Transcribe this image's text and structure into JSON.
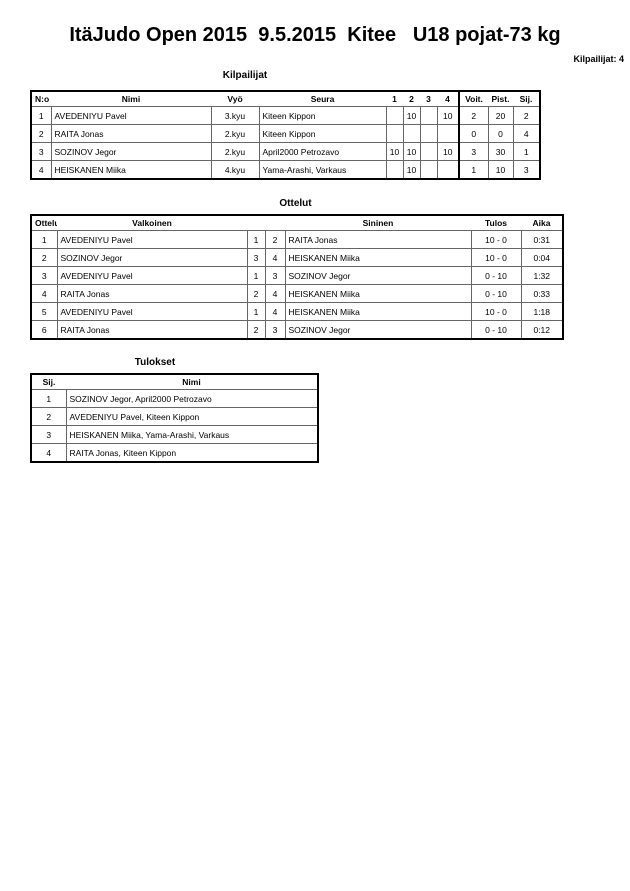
{
  "header": {
    "title": "ItäJudo Open 2015  9.5.2015  Kitee   U18 pojat-73 kg",
    "count": "Kilpailijat: 4"
  },
  "competitors": {
    "heading": "Kilpailijat",
    "columns": [
      "N:o",
      "Nimi",
      "Vyö",
      "Seura",
      "1",
      "2",
      "3",
      "4",
      "Voit.",
      "Pist.",
      "Sij."
    ],
    "rows": [
      [
        "1",
        "AVEDENIYU Pavel",
        "3.kyu",
        "Kiteen Kippon",
        "",
        "10",
        "",
        "10",
        "2",
        "20",
        "2"
      ],
      [
        "2",
        "RAITA Jonas",
        "2.kyu",
        "Kiteen Kippon",
        "",
        "",
        "",
        "",
        "0",
        "0",
        "4"
      ],
      [
        "3",
        "SOZINOV Jegor",
        "2.kyu",
        "April2000 Petrozavo",
        "10",
        "10",
        "",
        "10",
        "3",
        "30",
        "1"
      ],
      [
        "4",
        "HEISKANEN Miika",
        "4.kyu",
        "Yama-Arashi, Varkaus",
        "",
        "10",
        "",
        "",
        "1",
        "10",
        "3"
      ]
    ]
  },
  "matches": {
    "heading": "Ottelut",
    "columns": [
      "Ottelu",
      "Valkoinen",
      "",
      "",
      "Sininen",
      "Tulos",
      "Aika"
    ],
    "rows": [
      [
        "1",
        "AVEDENIYU Pavel",
        "1",
        "2",
        "RAITA Jonas",
        "10 - 0",
        "0:31"
      ],
      [
        "2",
        "SOZINOV Jegor",
        "3",
        "4",
        "HEISKANEN Miika",
        "10 - 0",
        "0:04"
      ],
      [
        "3",
        "AVEDENIYU Pavel",
        "1",
        "3",
        "SOZINOV Jegor",
        "0 - 10",
        "1:32"
      ],
      [
        "4",
        "RAITA Jonas",
        "2",
        "4",
        "HEISKANEN Miika",
        "0 - 10",
        "0:33"
      ],
      [
        "5",
        "AVEDENIYU Pavel",
        "1",
        "4",
        "HEISKANEN Miika",
        "10 - 0",
        "1:18"
      ],
      [
        "6",
        "RAITA Jonas",
        "2",
        "3",
        "SOZINOV Jegor",
        "0 - 10",
        "0:12"
      ]
    ]
  },
  "results": {
    "heading": "Tulokset",
    "columns": [
      "Sij.",
      "Nimi"
    ],
    "rows": [
      [
        "1",
        "SOZINOV Jegor, April2000 Petrozavo"
      ],
      [
        "2",
        "AVEDENIYU Pavel, Kiteen Kippon"
      ],
      [
        "3",
        "HEISKANEN Miika, Yama-Arashi, Varkaus"
      ],
      [
        "4",
        "RAITA Jonas, Kiteen Kippon"
      ]
    ]
  }
}
